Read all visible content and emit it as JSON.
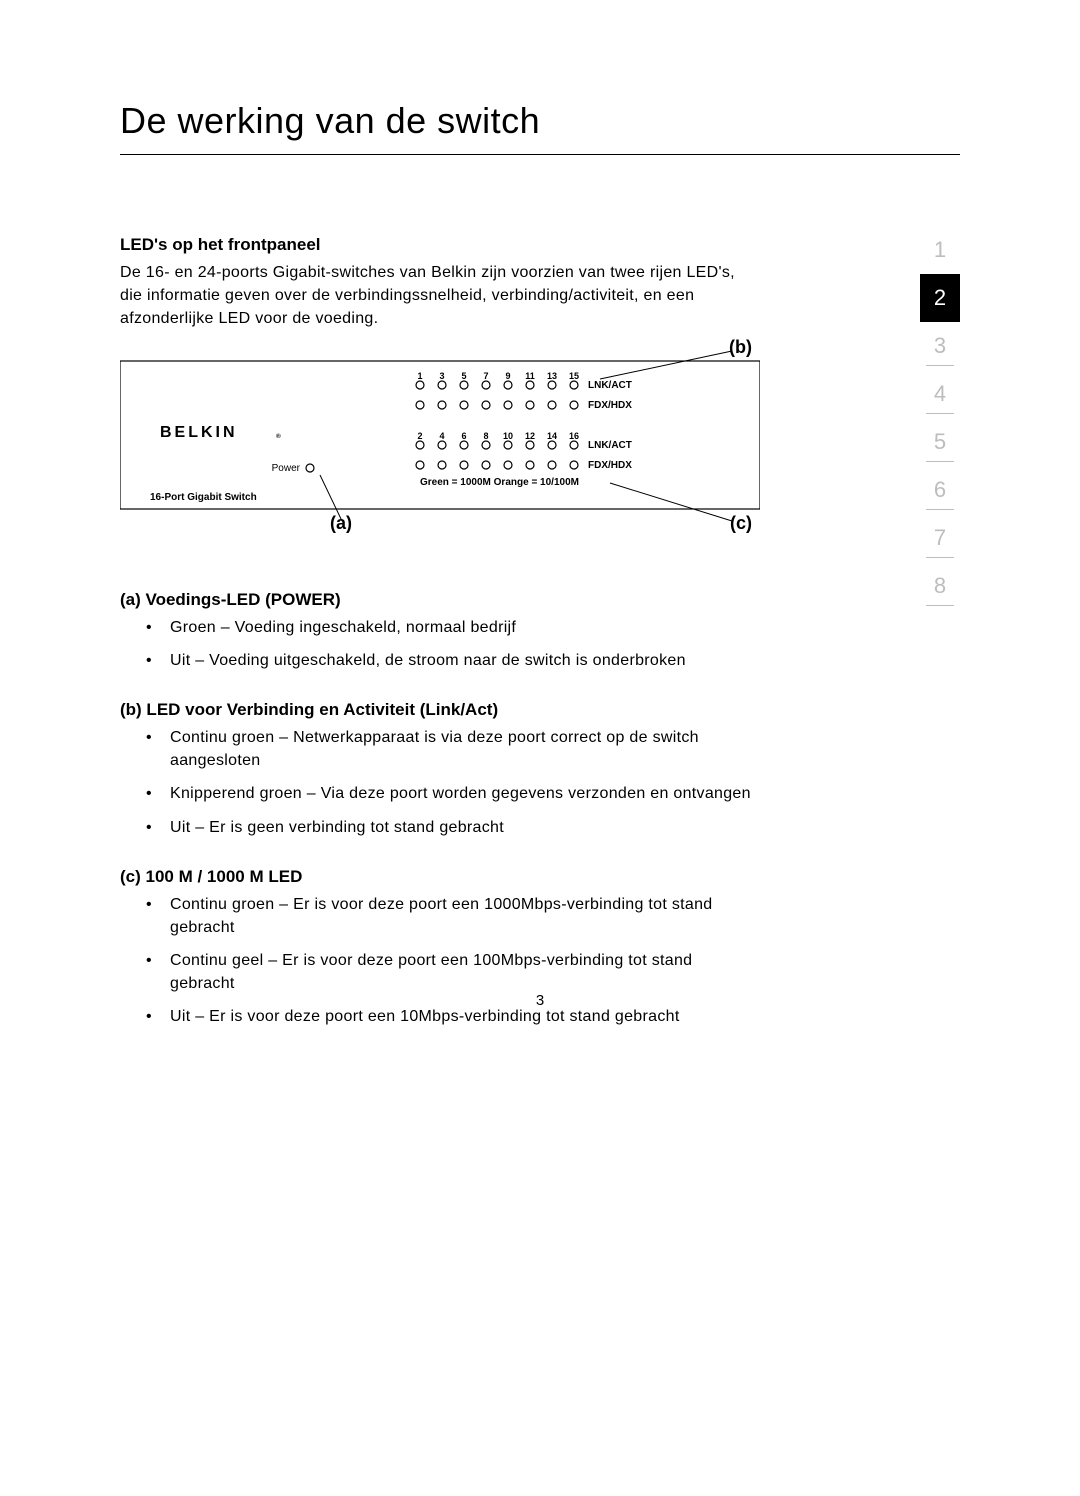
{
  "title": "De werking van de switch",
  "section1": {
    "heading": "LED's op het frontpaneel",
    "intro": "De 16- en 24-poorts Gigabit-switches van Belkin zijn voorzien van twee rijen LED's, die informatie geven over de verbindingssnelheid, verbinding/activiteit, en een afzonderlijke LED voor de voeding."
  },
  "diagram": {
    "brand": "BELKIN",
    "power_label": "Power",
    "device_label": "16-Port Gigabit Switch",
    "row_odd_numbers": [
      "1",
      "3",
      "5",
      "7",
      "9",
      "11",
      "13",
      "15"
    ],
    "row_even_numbers": [
      "2",
      "4",
      "6",
      "8",
      "10",
      "12",
      "14",
      "16"
    ],
    "lnk_act_label": "LNK/ACT",
    "fdx_hdx_label": "FDX/HDX",
    "legend": "Green = 1000M  Orange = 10/100M",
    "callout_a": "(a)",
    "callout_b": "(b)",
    "callout_c": "(c)",
    "colors": {
      "panel_border": "#000000",
      "led_stroke": "#000000",
      "text": "#000000",
      "bg": "#ffffff"
    }
  },
  "sectionA": {
    "heading": "(a) Voedings-LED (POWER)",
    "items": [
      "Groen – Voeding ingeschakeld, normaal bedrijf",
      "Uit – Voeding uitgeschakeld, de stroom naar de switch is onderbroken"
    ]
  },
  "sectionB": {
    "heading": "(b) LED voor Verbinding en Activiteit (Link/Act)",
    "items": [
      "Continu groen – Netwerkapparaat is via deze poort correct op de switch aangesloten",
      "Knipperend groen – Via deze poort worden gegevens verzonden en ontvangen",
      "Uit – Er is geen verbinding tot stand gebracht"
    ]
  },
  "sectionC": {
    "heading": "(c) 100 M / 1000 M LED",
    "items": [
      "Continu groen – Er is voor deze poort een 1000Mbps-verbinding tot stand gebracht",
      "Continu geel – Er is voor deze poort een 100Mbps-verbinding tot stand gebracht",
      "Uit – Er is voor deze poort een 10Mbps-verbinding tot stand gebracht"
    ]
  },
  "sidebar": {
    "items": [
      "1",
      "2",
      "3",
      "4",
      "5",
      "6",
      "7",
      "8"
    ],
    "active_index": 1,
    "underline_from_index": 2
  },
  "page_number": "3"
}
